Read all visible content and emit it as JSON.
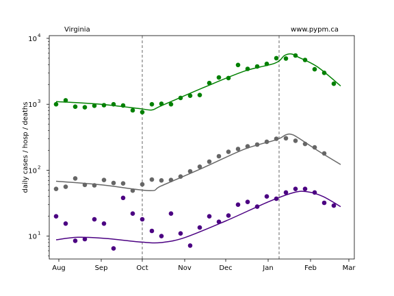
{
  "chart_data": {
    "type": "scatter",
    "title_left": "Virginia",
    "title_right": "www.pypm.ca",
    "xlabel": "",
    "ylabel": "daily cases / hosp / deaths",
    "yscale": "log",
    "ylim": [
      4.5,
      11000
    ],
    "xlim": [
      "2020-07-25",
      "2021-03-05"
    ],
    "x_ticks": [
      {
        "date": "2020-08-01",
        "label": "Aug"
      },
      {
        "date": "2020-09-01",
        "label": "Sep"
      },
      {
        "date": "2020-10-01",
        "label": "Oct"
      },
      {
        "date": "2020-11-01",
        "label": "Nov"
      },
      {
        "date": "2020-12-01",
        "label": "Dec"
      },
      {
        "date": "2021-01-01",
        "label": "Jan"
      },
      {
        "date": "2021-02-01",
        "label": "Feb"
      },
      {
        "date": "2021-03-01",
        "label": "Mar"
      }
    ],
    "y_ticks": [
      {
        "value": 10,
        "base": "10",
        "exp": "1"
      },
      {
        "value": 100,
        "base": "10",
        "exp": "2"
      },
      {
        "value": 1000,
        "base": "10",
        "exp": "3"
      },
      {
        "value": 10000,
        "base": "10",
        "exp": "4"
      }
    ],
    "vlines": [
      "2020-10-01",
      "2021-01-09"
    ],
    "grid": false,
    "series": [
      {
        "color": "#008000",
        "points": [
          [
            "2020-07-30",
            1000
          ],
          [
            "2020-08-06",
            1150
          ],
          [
            "2020-08-13",
            920
          ],
          [
            "2020-08-20",
            900
          ],
          [
            "2020-08-27",
            950
          ],
          [
            "2020-09-03",
            970
          ],
          [
            "2020-09-10",
            1000
          ],
          [
            "2020-09-17",
            960
          ],
          [
            "2020-09-24",
            810
          ],
          [
            "2020-10-01",
            760
          ],
          [
            "2020-10-08",
            1000
          ],
          [
            "2020-10-15",
            1020
          ],
          [
            "2020-10-22",
            1000
          ],
          [
            "2020-10-29",
            1250
          ],
          [
            "2020-11-05",
            1350
          ],
          [
            "2020-11-12",
            1380
          ],
          [
            "2020-11-19",
            2100
          ],
          [
            "2020-11-26",
            2550
          ],
          [
            "2020-12-03",
            2500
          ],
          [
            "2020-12-10",
            3950
          ],
          [
            "2020-12-17",
            3450
          ],
          [
            "2020-12-24",
            3750
          ],
          [
            "2020-12-31",
            4100
          ],
          [
            "2021-01-07",
            5000
          ],
          [
            "2021-01-14",
            4950
          ],
          [
            "2021-01-21",
            5500
          ],
          [
            "2021-01-28",
            4700
          ],
          [
            "2021-02-04",
            3400
          ],
          [
            "2021-02-11",
            3000
          ],
          [
            "2021-02-18",
            2050
          ]
        ],
        "model": [
          [
            "2020-07-30",
            1100
          ],
          [
            "2020-09-01",
            1000
          ],
          [
            "2020-09-29",
            860
          ],
          [
            "2020-10-08",
            820
          ],
          [
            "2020-10-15",
            950
          ],
          [
            "2020-11-15",
            1800
          ],
          [
            "2020-12-15",
            3200
          ],
          [
            "2021-01-06",
            4200
          ],
          [
            "2021-01-13",
            5500
          ],
          [
            "2021-01-18",
            5800
          ],
          [
            "2021-01-23",
            5200
          ],
          [
            "2021-02-06",
            3700
          ],
          [
            "2021-02-23",
            1900
          ]
        ]
      },
      {
        "color": "#666666",
        "points": [
          [
            "2020-07-30",
            52
          ],
          [
            "2020-08-06",
            56
          ],
          [
            "2020-08-13",
            75
          ],
          [
            "2020-08-20",
            60
          ],
          [
            "2020-08-27",
            59
          ],
          [
            "2020-09-03",
            71
          ],
          [
            "2020-09-10",
            64
          ],
          [
            "2020-09-17",
            63
          ],
          [
            "2020-09-24",
            49
          ],
          [
            "2020-10-01",
            61
          ],
          [
            "2020-10-08",
            72
          ],
          [
            "2020-10-15",
            70
          ],
          [
            "2020-10-22",
            71
          ],
          [
            "2020-10-29",
            80
          ],
          [
            "2020-11-05",
            96
          ],
          [
            "2020-11-12",
            113
          ],
          [
            "2020-11-19",
            135
          ],
          [
            "2020-11-26",
            163
          ],
          [
            "2020-12-03",
            190
          ],
          [
            "2020-12-10",
            210
          ],
          [
            "2020-12-17",
            230
          ],
          [
            "2020-12-24",
            245
          ],
          [
            "2020-12-31",
            270
          ],
          [
            "2021-01-07",
            300
          ],
          [
            "2021-01-14",
            305
          ],
          [
            "2021-01-21",
            280
          ],
          [
            "2021-01-28",
            250
          ],
          [
            "2021-02-04",
            222
          ],
          [
            "2021-02-11",
            180
          ]
        ],
        "model": [
          [
            "2020-07-30",
            68
          ],
          [
            "2020-09-01",
            60
          ],
          [
            "2020-10-06",
            49
          ],
          [
            "2020-10-15",
            58
          ],
          [
            "2020-11-15",
            110
          ],
          [
            "2020-12-15",
            210
          ],
          [
            "2021-01-07",
            290
          ],
          [
            "2021-01-14",
            345
          ],
          [
            "2021-01-18",
            350
          ],
          [
            "2021-01-23",
            310
          ],
          [
            "2021-02-06",
            200
          ],
          [
            "2021-02-23",
            122
          ]
        ]
      },
      {
        "color": "#4b0082",
        "points": [
          [
            "2020-07-30",
            20
          ],
          [
            "2020-08-06",
            15.5
          ],
          [
            "2020-08-13",
            8.5
          ],
          [
            "2020-08-20",
            9
          ],
          [
            "2020-08-27",
            18
          ],
          [
            "2020-09-03",
            15.5
          ],
          [
            "2020-09-10",
            6.5
          ],
          [
            "2020-09-17",
            38
          ],
          [
            "2020-09-24",
            22
          ],
          [
            "2020-10-01",
            18
          ],
          [
            "2020-10-08",
            12
          ],
          [
            "2020-10-15",
            10
          ],
          [
            "2020-10-22",
            22
          ],
          [
            "2020-10-29",
            11
          ],
          [
            "2020-11-05",
            7.2
          ],
          [
            "2020-11-12",
            13.5
          ],
          [
            "2020-11-19",
            20
          ],
          [
            "2020-11-26",
            16.5
          ],
          [
            "2020-12-03",
            20.5
          ],
          [
            "2020-12-10",
            30
          ],
          [
            "2020-12-17",
            33
          ],
          [
            "2020-12-24",
            28
          ],
          [
            "2020-12-31",
            40
          ],
          [
            "2021-01-07",
            37
          ],
          [
            "2021-01-14",
            46
          ],
          [
            "2021-01-21",
            52
          ],
          [
            "2021-01-28",
            52
          ],
          [
            "2021-02-04",
            46
          ],
          [
            "2021-02-11",
            32
          ],
          [
            "2021-02-18",
            29
          ]
        ],
        "model": [
          [
            "2020-07-30",
            8.8
          ],
          [
            "2020-08-15",
            9.6
          ],
          [
            "2020-09-05",
            9.2
          ],
          [
            "2020-10-01",
            8.1
          ],
          [
            "2020-10-15",
            8.0
          ],
          [
            "2020-11-01",
            9.5
          ],
          [
            "2020-12-01",
            17
          ],
          [
            "2021-01-01",
            33
          ],
          [
            "2021-01-20",
            46
          ],
          [
            "2021-01-30",
            47
          ],
          [
            "2021-02-10",
            40
          ],
          [
            "2021-02-23",
            28
          ]
        ]
      }
    ]
  }
}
